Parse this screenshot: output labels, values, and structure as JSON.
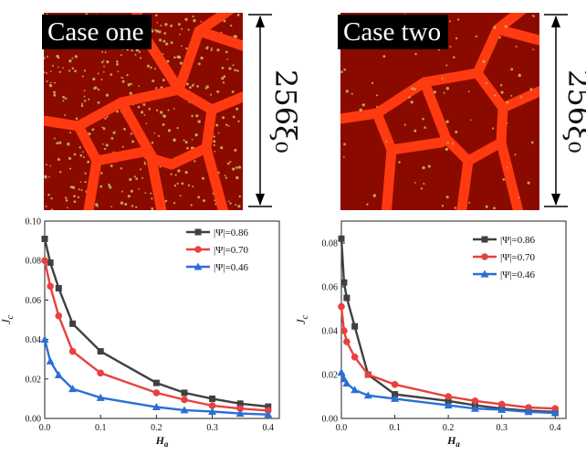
{
  "microstructure": {
    "left": {
      "label": "Case one",
      "scale_label": "256ξ₀"
    },
    "right": {
      "label": "Case two",
      "scale_label": "256ξ₀"
    },
    "colors": {
      "background": "#8b0a00",
      "boundary": "#ff3a10",
      "inclusion": "#c8c060"
    }
  },
  "chart_data": [
    {
      "type": "line",
      "xlabel": "H_a",
      "ylabel": "J_c",
      "xlim": [
        0.0,
        0.42
      ],
      "ylim": [
        0.0,
        0.1
      ],
      "xticks": [
        "0.0",
        "0.1",
        "0.2",
        "0.3",
        "0.4"
      ],
      "yticks": [
        "0.00",
        "0.02",
        "0.04",
        "0.06",
        "0.08",
        "0.10"
      ],
      "legend_position": "top-right",
      "series": [
        {
          "name": "|Ψ|=0.86",
          "color": "#404040",
          "marker": "square",
          "x": [
            0.0,
            0.01,
            0.025,
            0.05,
            0.1,
            0.2,
            0.25,
            0.3,
            0.35,
            0.4
          ],
          "y": [
            0.091,
            0.079,
            0.066,
            0.048,
            0.034,
            0.018,
            0.013,
            0.01,
            0.0075,
            0.006
          ]
        },
        {
          "name": "|Ψ|=0.70",
          "color": "#e8413e",
          "marker": "circle",
          "x": [
            0.0,
            0.01,
            0.025,
            0.05,
            0.1,
            0.2,
            0.25,
            0.3,
            0.35,
            0.4
          ],
          "y": [
            0.08,
            0.067,
            0.052,
            0.034,
            0.023,
            0.013,
            0.0095,
            0.0065,
            0.005,
            0.004
          ]
        },
        {
          "name": "|Ψ|=0.46",
          "color": "#2a6fd6",
          "marker": "triangle",
          "x": [
            0.0,
            0.01,
            0.025,
            0.05,
            0.1,
            0.2,
            0.25,
            0.3,
            0.35,
            0.4
          ],
          "y": [
            0.04,
            0.029,
            0.022,
            0.015,
            0.0105,
            0.0058,
            0.0042,
            0.0035,
            0.0025,
            0.002
          ]
        }
      ]
    },
    {
      "type": "line",
      "xlabel": "H_a",
      "ylabel": "J_c",
      "xlim": [
        0.0,
        0.42
      ],
      "ylim": [
        0.0,
        0.09
      ],
      "xticks": [
        "0.0",
        "0.1",
        "0.2",
        "0.3",
        "0.4"
      ],
      "yticks": [
        "0.00",
        "0.02",
        "0.04",
        "0.06",
        "0.08"
      ],
      "legend_position": "top-right",
      "series": [
        {
          "name": "|Ψ|=0.86",
          "color": "#404040",
          "marker": "square",
          "x": [
            0.0,
            0.005,
            0.01,
            0.025,
            0.05,
            0.1,
            0.2,
            0.25,
            0.3,
            0.35,
            0.4
          ],
          "y": [
            0.082,
            0.062,
            0.055,
            0.042,
            0.02,
            0.011,
            0.008,
            0.006,
            0.0045,
            0.0035,
            0.003
          ]
        },
        {
          "name": "|Ψ|=0.70",
          "color": "#e8413e",
          "marker": "circle",
          "x": [
            0.0,
            0.005,
            0.01,
            0.025,
            0.05,
            0.1,
            0.2,
            0.25,
            0.3,
            0.35,
            0.4
          ],
          "y": [
            0.051,
            0.04,
            0.035,
            0.028,
            0.02,
            0.0155,
            0.01,
            0.008,
            0.0065,
            0.005,
            0.0045
          ]
        },
        {
          "name": "|Ψ|=0.46",
          "color": "#2a6fd6",
          "marker": "triangle",
          "x": [
            0.0,
            0.005,
            0.01,
            0.025,
            0.05,
            0.1,
            0.2,
            0.25,
            0.3,
            0.35,
            0.4
          ],
          "y": [
            0.021,
            0.018,
            0.016,
            0.013,
            0.0105,
            0.009,
            0.006,
            0.0045,
            0.004,
            0.003,
            0.0025
          ]
        }
      ]
    }
  ]
}
